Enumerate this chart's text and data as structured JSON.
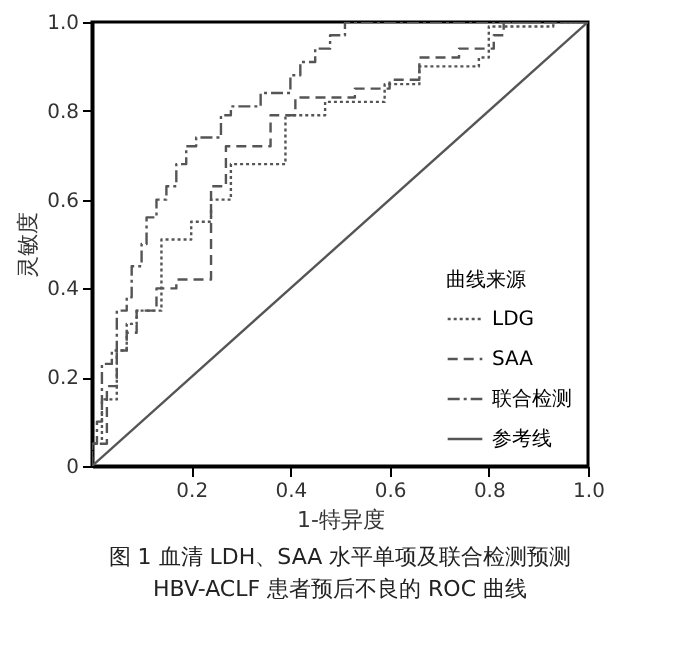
{
  "chart_data": {
    "type": "line",
    "title": "图 1  血清 LDH、SAA 水平单项及联合检测预测 HBV-ACLF 患者预后不良的 ROC 曲线",
    "xlabel": "1-特异度",
    "ylabel": "灵敏度",
    "legend_title": "曲线来源",
    "legend": "bottom right",
    "grid": false,
    "xlim": [
      0,
      1
    ],
    "ylim": [
      0,
      1
    ],
    "xticks": [
      0.2,
      0.4,
      0.6,
      0.8,
      {
        "value": 1,
        "label": "1.0"
      }
    ],
    "yticks": [
      0,
      0.2,
      0.4,
      0.6,
      0.8,
      {
        "value": 1,
        "label": "1.0"
      }
    ],
    "series": [
      {
        "name": "LDG",
        "color": "#555555",
        "line_style": "dotted",
        "x": [
          0,
          0,
          0.02,
          0.02,
          0.05,
          0.05,
          0.07,
          0.07,
          0.09,
          0.09,
          0.14,
          0.14,
          0.2,
          0.2,
          0.24,
          0.24,
          0.28,
          0.28,
          0.39,
          0.39,
          0.47,
          0.47,
          0.59,
          0.59,
          0.66,
          0.66,
          0.78,
          0.78,
          0.8,
          0.8,
          0.93,
          0.93,
          1
        ],
        "values": [
          0,
          0.05,
          0.05,
          0.15,
          0.15,
          0.26,
          0.26,
          0.32,
          0.32,
          0.35,
          0.35,
          0.51,
          0.51,
          0.55,
          0.55,
          0.6,
          0.6,
          0.68,
          0.68,
          0.79,
          0.79,
          0.82,
          0.82,
          0.86,
          0.86,
          0.9,
          0.9,
          0.92,
          0.92,
          0.99,
          0.99,
          1,
          1
        ]
      },
      {
        "name": "SAA",
        "color": "#555555",
        "line_style": "dashed",
        "x": [
          0,
          0,
          0.03,
          0.03,
          0.05,
          0.05,
          0.07,
          0.07,
          0.09,
          0.09,
          0.13,
          0.13,
          0.17,
          0.17,
          0.24,
          0.24,
          0.27,
          0.27,
          0.36,
          0.36,
          0.41,
          0.41,
          0.53,
          0.53,
          0.6,
          0.6,
          0.66,
          0.66,
          0.74,
          0.74,
          0.81,
          0.81,
          0.83,
          0.83,
          1
        ],
        "values": [
          0,
          0.05,
          0.05,
          0.18,
          0.18,
          0.26,
          0.26,
          0.3,
          0.3,
          0.35,
          0.35,
          0.4,
          0.4,
          0.42,
          0.42,
          0.63,
          0.63,
          0.72,
          0.72,
          0.79,
          0.79,
          0.83,
          0.83,
          0.85,
          0.85,
          0.87,
          0.87,
          0.92,
          0.92,
          0.94,
          0.94,
          0.97,
          0.97,
          1,
          1
        ]
      },
      {
        "name": "联合检测",
        "color": "#555555",
        "line_style": "dashdot",
        "x": [
          0,
          0,
          0.01,
          0.01,
          0.02,
          0.02,
          0.04,
          0.04,
          0.05,
          0.05,
          0.07,
          0.07,
          0.08,
          0.08,
          0.1,
          0.1,
          0.11,
          0.11,
          0.13,
          0.13,
          0.15,
          0.15,
          0.17,
          0.17,
          0.19,
          0.19,
          0.21,
          0.21,
          0.26,
          0.26,
          0.28,
          0.28,
          0.34,
          0.34,
          0.4,
          0.4,
          0.42,
          0.42,
          0.45,
          0.45,
          0.48,
          0.48,
          0.51,
          0.51,
          1
        ],
        "values": [
          0,
          0.05,
          0.05,
          0.1,
          0.1,
          0.23,
          0.23,
          0.26,
          0.26,
          0.35,
          0.35,
          0.38,
          0.38,
          0.45,
          0.45,
          0.5,
          0.5,
          0.56,
          0.56,
          0.6,
          0.6,
          0.63,
          0.63,
          0.68,
          0.68,
          0.72,
          0.72,
          0.74,
          0.74,
          0.79,
          0.79,
          0.81,
          0.81,
          0.84,
          0.84,
          0.88,
          0.88,
          0.91,
          0.91,
          0.94,
          0.94,
          0.97,
          0.97,
          1,
          1
        ]
      },
      {
        "name": "参考线",
        "color": "#555555",
        "line_style": "solid",
        "x": [
          0,
          1
        ],
        "values": [
          0,
          1
        ]
      }
    ]
  }
}
